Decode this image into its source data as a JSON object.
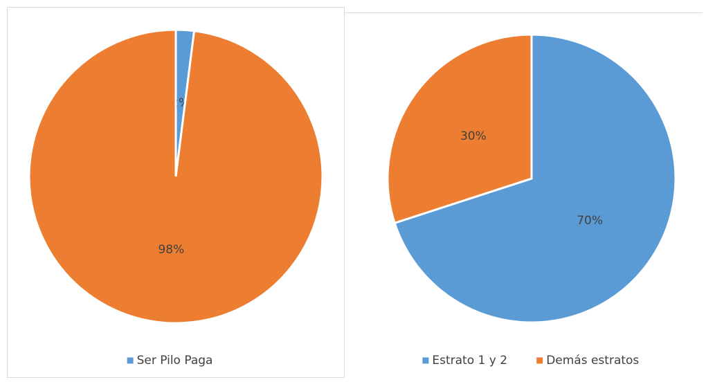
{
  "chart_data": [
    {
      "type": "pie",
      "categories": [
        "Ser Pilo Paga",
        null
      ],
      "values": [
        2,
        98
      ],
      "value_labels": [
        "2%",
        "98%"
      ],
      "colors": [
        "#5b9bd5",
        "#ed7d31"
      ],
      "legend": "bottom"
    },
    {
      "type": "pie",
      "categories": [
        "Estrato 1 y 2",
        "Demás estratos"
      ],
      "values": [
        70,
        30
      ],
      "value_labels": [
        "70%",
        "30%"
      ],
      "colors": [
        "#5b9bd5",
        "#ed7d31"
      ],
      "legend": "bottom"
    }
  ]
}
